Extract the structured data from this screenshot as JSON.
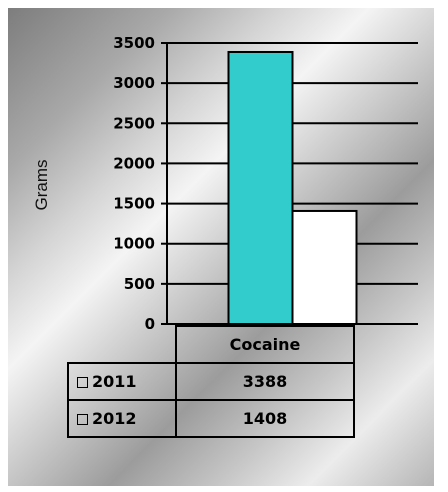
{
  "chart_data": {
    "type": "bar",
    "categories": [
      "Cocaine"
    ],
    "series": [
      {
        "name": "2011",
        "values": [
          3388
        ],
        "color": "#33cccc"
      },
      {
        "name": "2012",
        "values": [
          1408
        ],
        "color": "#ffffff"
      }
    ],
    "ylabel": "Grams",
    "ylim": [
      0,
      3500
    ],
    "yticks": [
      0,
      500,
      1000,
      1500,
      2000,
      2500,
      3000,
      3500
    ],
    "grid": true,
    "legend": "data-table",
    "data_table": true
  }
}
